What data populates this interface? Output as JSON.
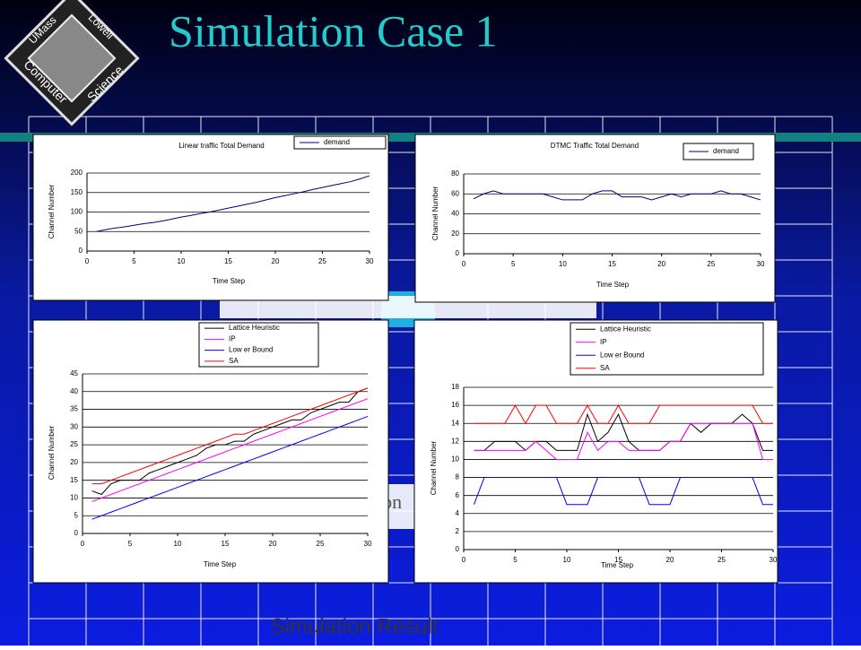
{
  "slide": {
    "title": "Simulation Case 1",
    "footer": "Simulation Result",
    "background_label": "ion",
    "logo": [
      "UMass",
      "Lowell",
      "Computer",
      "Science"
    ]
  },
  "chart_data": [
    {
      "type": "line",
      "title": "Linear traffic Total Demand",
      "xlabel": "Time Step",
      "ylabel": "Channel Number",
      "x": [
        1,
        2,
        3,
        4,
        5,
        6,
        7,
        8,
        9,
        10,
        11,
        12,
        13,
        14,
        15,
        16,
        17,
        18,
        19,
        20,
        21,
        22,
        23,
        24,
        25,
        26,
        27,
        28,
        29,
        30
      ],
      "series": [
        {
          "name": "demand",
          "color": "#000080",
          "values": [
            50,
            55,
            59,
            62,
            66,
            70,
            73,
            77,
            82,
            87,
            91,
            96,
            100,
            105,
            110,
            115,
            120,
            125,
            131,
            137,
            142,
            147,
            152,
            158,
            163,
            168,
            173,
            178,
            185,
            193
          ]
        }
      ],
      "xlim": [
        0,
        30
      ],
      "xticks": [
        0,
        5,
        10,
        15,
        20,
        25,
        30
      ],
      "ylim": [
        0,
        200
      ],
      "yticks": [
        0,
        50,
        100,
        150,
        200
      ],
      "grid": true,
      "legend": "top-right"
    },
    {
      "type": "line",
      "title": "DTMC Traffic Total Demand",
      "xlabel": "Time Step",
      "ylabel": "Channel Number",
      "x": [
        1,
        2,
        3,
        4,
        5,
        6,
        7,
        8,
        9,
        10,
        11,
        12,
        13,
        14,
        15,
        16,
        17,
        18,
        19,
        20,
        21,
        22,
        23,
        24,
        25,
        26,
        27,
        28,
        29,
        30
      ],
      "series": [
        {
          "name": "demand",
          "color": "#000080",
          "values": [
            55,
            60,
            63,
            60,
            60,
            60,
            60,
            60,
            57,
            54,
            54,
            54,
            60,
            63,
            63,
            57,
            57,
            57,
            54,
            57,
            60,
            57,
            60,
            60,
            60,
            63,
            60,
            60,
            57,
            54
          ]
        }
      ],
      "xlim": [
        0,
        30
      ],
      "xticks": [
        0,
        5,
        10,
        15,
        20,
        25,
        30
      ],
      "ylim": [
        0,
        80
      ],
      "yticks": [
        0,
        20,
        40,
        60,
        80
      ],
      "grid": true,
      "legend": "top-right"
    },
    {
      "type": "line",
      "xlabel": "Time Step",
      "ylabel": "Channel Number",
      "x": [
        1,
        2,
        3,
        4,
        5,
        6,
        7,
        8,
        9,
        10,
        11,
        12,
        13,
        14,
        15,
        16,
        17,
        18,
        19,
        20,
        21,
        22,
        23,
        24,
        25,
        26,
        27,
        28,
        29,
        30
      ],
      "series": [
        {
          "name": "Lattice Heuristic",
          "color": "#000000",
          "values": [
            12,
            11,
            14,
            15,
            15,
            15,
            17,
            18,
            19,
            20,
            21,
            22,
            24,
            25,
            25,
            26,
            26,
            28,
            29,
            30,
            31,
            32,
            32,
            34,
            35,
            36,
            37,
            37,
            40,
            41
          ]
        },
        {
          "name": "IP",
          "color": "#ff00ff",
          "values": [
            9,
            10,
            11,
            12,
            13,
            14,
            15,
            16,
            17,
            18,
            19,
            20,
            21,
            22,
            23,
            24,
            25,
            26,
            27,
            28,
            29,
            30,
            31,
            32,
            33,
            34,
            35,
            36,
            37,
            38
          ]
        },
        {
          "name": "Low er Bound",
          "color": "#0000ff",
          "values": [
            4,
            5,
            6,
            7,
            8,
            9,
            10,
            11,
            12,
            13,
            14,
            15,
            16,
            17,
            18,
            19,
            20,
            21,
            22,
            23,
            24,
            25,
            26,
            27,
            28,
            29,
            30,
            31,
            32,
            33
          ]
        },
        {
          "name": "SA",
          "color": "#ff0000",
          "values": [
            14,
            14,
            15,
            16,
            17,
            18,
            19,
            20,
            21,
            22,
            23,
            24,
            25,
            26,
            27,
            28,
            28,
            29,
            30,
            31,
            32,
            33,
            34,
            35,
            36,
            37,
            38,
            39,
            40,
            41
          ]
        }
      ],
      "xlim": [
        0,
        30
      ],
      "xticks": [
        0,
        5,
        10,
        15,
        20,
        25,
        30
      ],
      "ylim": [
        0,
        45
      ],
      "yticks": [
        0,
        5,
        10,
        15,
        20,
        25,
        30,
        35,
        40,
        45
      ],
      "grid": true,
      "legend": "top"
    },
    {
      "type": "line",
      "xlabel": "Time Step",
      "ylabel": "Channel Number",
      "x": [
        1,
        2,
        3,
        4,
        5,
        6,
        7,
        8,
        9,
        10,
        11,
        12,
        13,
        14,
        15,
        16,
        17,
        18,
        19,
        20,
        21,
        22,
        23,
        24,
        25,
        26,
        27,
        28,
        29,
        30
      ],
      "series": [
        {
          "name": "Lattice Heuristic",
          "color": "#000000",
          "values": [
            11,
            11,
            12,
            12,
            12,
            11,
            12,
            12,
            11,
            11,
            11,
            15,
            12,
            13,
            15,
            12,
            11,
            11,
            11,
            12,
            12,
            14,
            13,
            14,
            14,
            14,
            15,
            14,
            11,
            11
          ]
        },
        {
          "name": "IP",
          "color": "#ff00ff",
          "values": [
            11,
            11,
            11,
            11,
            11,
            11,
            12,
            11,
            10,
            10,
            10,
            13,
            11,
            12,
            12,
            11,
            11,
            11,
            11,
            12,
            12,
            14,
            14,
            14,
            14,
            14,
            14,
            14,
            10,
            10
          ]
        },
        {
          "name": "Low er Bound",
          "color": "#0000ff",
          "values": [
            5,
            8,
            8,
            8,
            8,
            8,
            8,
            8,
            8,
            5,
            5,
            5,
            8,
            8,
            8,
            8,
            8,
            5,
            5,
            5,
            8,
            8,
            8,
            8,
            8,
            8,
            8,
            8,
            5,
            5
          ]
        },
        {
          "name": "SA",
          "color": "#ff0000",
          "values": [
            14,
            14,
            14,
            14,
            16,
            14,
            16,
            16,
            14,
            14,
            14,
            16,
            14,
            14,
            16,
            14,
            14,
            14,
            16,
            16,
            16,
            16,
            16,
            16,
            16,
            16,
            16,
            16,
            14,
            14
          ]
        }
      ],
      "xlim": [
        0,
        30
      ],
      "xticks": [
        0,
        5,
        10,
        15,
        20,
        25,
        30
      ],
      "ylim": [
        0,
        18
      ],
      "yticks": [
        0,
        2,
        4,
        6,
        8,
        10,
        12,
        14,
        16,
        18
      ],
      "grid": true,
      "legend": "top-right"
    }
  ]
}
